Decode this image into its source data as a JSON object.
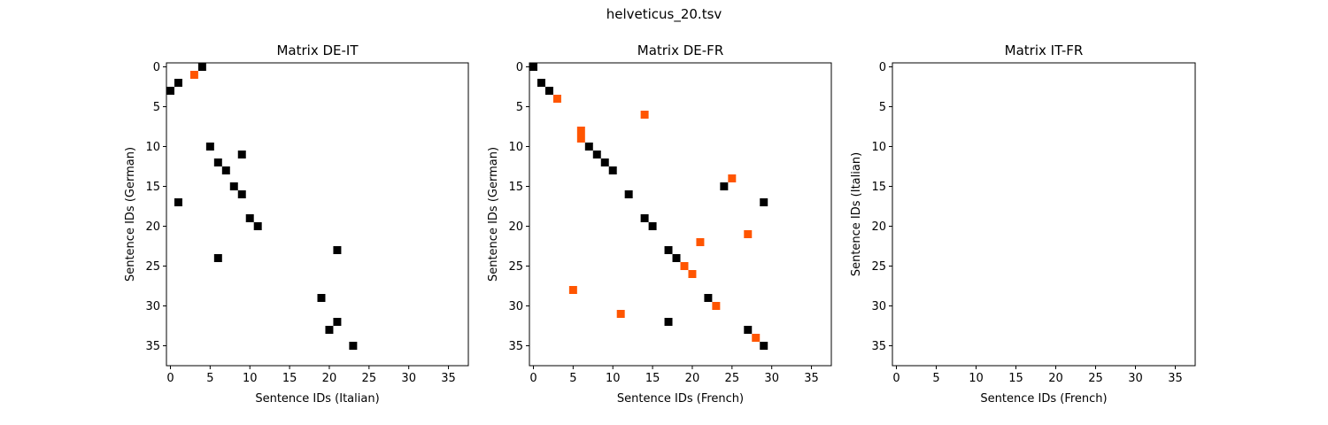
{
  "figure": {
    "suptitle": "helveticus_20.tsv"
  },
  "colors": {
    "default_mark": "#000000",
    "highlight_mark": "#ff5500",
    "axes_frame": "#000000",
    "background": "#ffffff"
  },
  "chart_data": [
    {
      "type": "heatmap",
      "title": "Matrix DE-IT",
      "xlabel": "Sentence IDs (Italian)",
      "ylabel": "Sentence IDs (German)",
      "xlim": [
        -0.5,
        37.5
      ],
      "ylim": [
        37.5,
        -0.5
      ],
      "y_inverted": true,
      "xticks": [
        0,
        5,
        10,
        15,
        20,
        25,
        30,
        35
      ],
      "yticks": [
        0,
        5,
        10,
        15,
        20,
        25,
        30,
        35
      ],
      "grid": false,
      "cells": [
        {
          "x": 4,
          "y": 0,
          "color": "black"
        },
        {
          "x": 3,
          "y": 1,
          "color": "orange"
        },
        {
          "x": 1,
          "y": 2,
          "color": "black"
        },
        {
          "x": 0,
          "y": 3,
          "color": "black"
        },
        {
          "x": 5,
          "y": 10,
          "color": "black"
        },
        {
          "x": 9,
          "y": 11,
          "color": "black"
        },
        {
          "x": 6,
          "y": 12,
          "color": "black"
        },
        {
          "x": 7,
          "y": 13,
          "color": "black"
        },
        {
          "x": 8,
          "y": 15,
          "color": "black"
        },
        {
          "x": 9,
          "y": 16,
          "color": "black"
        },
        {
          "x": 1,
          "y": 17,
          "color": "black"
        },
        {
          "x": 10,
          "y": 19,
          "color": "black"
        },
        {
          "x": 11,
          "y": 20,
          "color": "black"
        },
        {
          "x": 21,
          "y": 23,
          "color": "black"
        },
        {
          "x": 6,
          "y": 24,
          "color": "black"
        },
        {
          "x": 19,
          "y": 29,
          "color": "black"
        },
        {
          "x": 21,
          "y": 32,
          "color": "black"
        },
        {
          "x": 20,
          "y": 33,
          "color": "black"
        },
        {
          "x": 23,
          "y": 35,
          "color": "black"
        }
      ]
    },
    {
      "type": "heatmap",
      "title": "Matrix DE-FR",
      "xlabel": "Sentence IDs (French)",
      "ylabel": "Sentence IDs (German)",
      "xlim": [
        -0.5,
        37.5
      ],
      "ylim": [
        37.5,
        -0.5
      ],
      "y_inverted": true,
      "xticks": [
        0,
        5,
        10,
        15,
        20,
        25,
        30,
        35
      ],
      "yticks": [
        0,
        5,
        10,
        15,
        20,
        25,
        30,
        35
      ],
      "grid": false,
      "cells": [
        {
          "x": 0,
          "y": 0,
          "color": "black"
        },
        {
          "x": 1,
          "y": 2,
          "color": "black"
        },
        {
          "x": 2,
          "y": 3,
          "color": "black"
        },
        {
          "x": 3,
          "y": 4,
          "color": "orange"
        },
        {
          "x": 14,
          "y": 6,
          "color": "orange"
        },
        {
          "x": 6,
          "y": 8,
          "color": "orange"
        },
        {
          "x": 6,
          "y": 9,
          "color": "orange"
        },
        {
          "x": 7,
          "y": 10,
          "color": "black"
        },
        {
          "x": 8,
          "y": 11,
          "color": "black"
        },
        {
          "x": 9,
          "y": 12,
          "color": "black"
        },
        {
          "x": 10,
          "y": 13,
          "color": "black"
        },
        {
          "x": 25,
          "y": 14,
          "color": "orange"
        },
        {
          "x": 24,
          "y": 15,
          "color": "black"
        },
        {
          "x": 12,
          "y": 16,
          "color": "black"
        },
        {
          "x": 29,
          "y": 17,
          "color": "black"
        },
        {
          "x": 14,
          "y": 19,
          "color": "black"
        },
        {
          "x": 15,
          "y": 20,
          "color": "black"
        },
        {
          "x": 27,
          "y": 21,
          "color": "orange"
        },
        {
          "x": 21,
          "y": 22,
          "color": "orange"
        },
        {
          "x": 17,
          "y": 23,
          "color": "black"
        },
        {
          "x": 18,
          "y": 24,
          "color": "black"
        },
        {
          "x": 19,
          "y": 25,
          "color": "orange"
        },
        {
          "x": 20,
          "y": 26,
          "color": "orange"
        },
        {
          "x": 5,
          "y": 28,
          "color": "orange"
        },
        {
          "x": 22,
          "y": 29,
          "color": "black"
        },
        {
          "x": 23,
          "y": 30,
          "color": "orange"
        },
        {
          "x": 11,
          "y": 31,
          "color": "orange"
        },
        {
          "x": 17,
          "y": 32,
          "color": "black"
        },
        {
          "x": 27,
          "y": 33,
          "color": "black"
        },
        {
          "x": 28,
          "y": 34,
          "color": "orange"
        },
        {
          "x": 29,
          "y": 35,
          "color": "black"
        }
      ]
    },
    {
      "type": "heatmap",
      "title": "Matrix IT-FR",
      "xlabel": "Sentence IDs (French)",
      "ylabel": "Sentence IDs (Italian)",
      "xlim": [
        -0.5,
        37.5
      ],
      "ylim": [
        37.5,
        -0.5
      ],
      "y_inverted": true,
      "xticks": [
        0,
        5,
        10,
        15,
        20,
        25,
        30,
        35
      ],
      "yticks": [
        0,
        5,
        10,
        15,
        20,
        25,
        30,
        35
      ],
      "grid": false,
      "cells": []
    }
  ]
}
